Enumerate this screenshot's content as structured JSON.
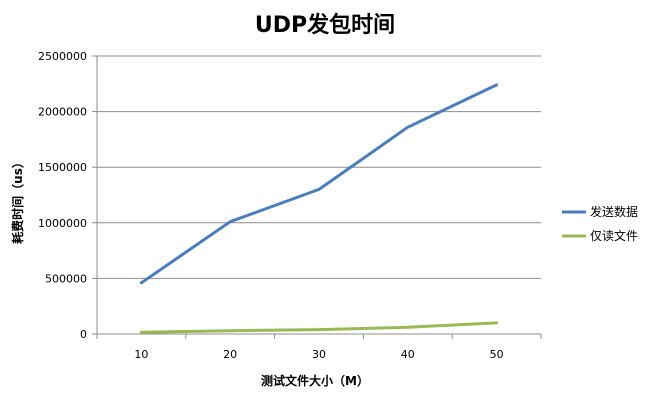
{
  "chart_data": {
    "type": "line",
    "title": "UDP发包时间",
    "xlabel": "测试文件大小（M）",
    "ylabel": "耗费时间（us）",
    "categories": [
      "10",
      "20",
      "30",
      "40",
      "50"
    ],
    "ylim": [
      0,
      2500000
    ],
    "yticks": [
      "0",
      "500000",
      "1000000",
      "1500000",
      "2000000",
      "2500000"
    ],
    "grid": true,
    "legend_position": "right",
    "series": [
      {
        "name": "发送数据",
        "color": "#4a7ebb",
        "values": [
          460000,
          1010000,
          1300000,
          1860000,
          2240000
        ]
      },
      {
        "name": "仅读文件",
        "color": "#98b954",
        "values": [
          15000,
          30000,
          40000,
          60000,
          100000
        ]
      }
    ]
  }
}
